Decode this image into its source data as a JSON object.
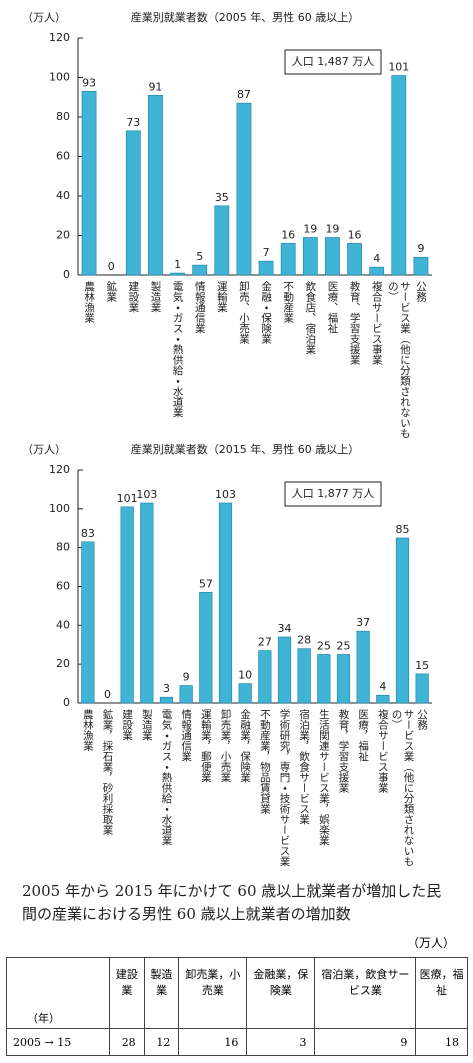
{
  "chart_data": [
    {
      "type": "bar",
      "title": "産業別就業者数（2005 年、男性 60 歳以上）",
      "y_label": "（万人）",
      "annotation": "人口 1,487 万人",
      "categories": [
        "農林漁業",
        "鉱業",
        "建設業",
        "製造業",
        "電気・ガス・熱供給・水道業",
        "情報通信業",
        "運輸業",
        "卸売、小売業",
        "金融・保険業",
        "不動産業",
        "飲食店、宿泊業",
        "医療、福祉",
        "教育、学習支援業",
        "複合サービス事業",
        "サービス業（他に分類されないもの）",
        "公務"
      ],
      "values": [
        93,
        0,
        73,
        91,
        1,
        5,
        35,
        87,
        7,
        16,
        19,
        19,
        16,
        4,
        101,
        9
      ],
      "color": "#3fb4d6",
      "ylim": [
        0,
        120
      ],
      "yticks": [
        0,
        20,
        40,
        60,
        80,
        100,
        120
      ]
    },
    {
      "type": "bar",
      "title": "産業別就業者数（2015 年、男性 60 歳以上）",
      "y_label": "（万人）",
      "annotation": "人口 1,877 万人",
      "categories": [
        "農林漁業",
        "鉱業，採石業，砂利採取業",
        "建設業",
        "製造業",
        "電気・ガス・熱供給・水道業",
        "情報通信業",
        "運輸業，郵便業",
        "卸売業，小売業",
        "金融業，保険業",
        "不動産業，物品賃貸業",
        "学術研究，専門・技術サービス業",
        "宿泊業，飲食サービス業",
        "生活関連サービス業，娯楽業",
        "教育，学習支援業",
        "医療，福祉",
        "複合サービス事業",
        "サービス業（他に分類されないもの）",
        "公務"
      ],
      "values": [
        83,
        0,
        101,
        103,
        3,
        9,
        57,
        103,
        10,
        27,
        34,
        28,
        25,
        25,
        37,
        4,
        85,
        15
      ],
      "color": "#3fb4d6",
      "ylim": [
        0,
        120
      ],
      "yticks": [
        0,
        20,
        40,
        60,
        80,
        100,
        120
      ]
    }
  ],
  "caption": "2005 年から 2015 年にかけて 60 歳以上就業者が増加した民間の産業における男性 60 歳以上就業者の増加数",
  "table": {
    "unit": "（万人）",
    "header": [
      "（年）",
      "建設業",
      "製造業",
      "卸売業，小売業",
      "金融業，保険業",
      "宿泊業，飲食サービス業",
      "医療，福祉"
    ],
    "rows": [
      [
        "2005 → 15",
        28,
        12,
        16,
        3,
        9,
        18
      ]
    ]
  }
}
